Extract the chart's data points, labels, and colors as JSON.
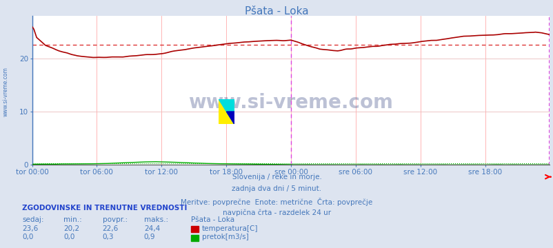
{
  "title": "Pšata - Loka",
  "bg_color": "#dde4f0",
  "plot_bg_color": "#ffffff",
  "grid_color_v": "#ffb0b0",
  "grid_color_h": "#ddcccc",
  "x_labels": [
    "tor 00:00",
    "tor 06:00",
    "tor 12:00",
    "tor 18:00",
    "sre 00:00",
    "sre 06:00",
    "sre 12:00",
    "sre 18:00"
  ],
  "x_ticks_pos": [
    0,
    72,
    144,
    216,
    288,
    360,
    432,
    504
  ],
  "total_points": 577,
  "ylim": [
    0,
    28
  ],
  "yticks": [
    0,
    10,
    20
  ],
  "temp_color": "#aa0000",
  "temp_avg_color": "#dd3333",
  "flow_color": "#00aa00",
  "flow_avg_color": "#00aa00",
  "vertical_line_color": "#dd44dd",
  "vertical_line_x": 288,
  "avg_temp": 22.6,
  "avg_flow": 0.3,
  "text_color": "#4477bb",
  "subtitle_lines": [
    "Slovenija / reke in morje.",
    "zadnja dva dni / 5 minut.",
    "Meritve: povprečne  Enote: metrične  Črta: povprečje",
    "navpična črta - razdelek 24 ur"
  ],
  "info_title": "ZGODOVINSKE IN TRENUTNE VREDNOSTI",
  "col_headers": [
    "sedaj:",
    "min.:",
    "povpr.:",
    "maks.:"
  ],
  "station_name": "Pšata - Loka",
  "temp_row": [
    "23,6",
    "20,2",
    "22,6",
    "24,4",
    "temperatura[C]"
  ],
  "flow_row": [
    "0,0",
    "0,0",
    "0,3",
    "0,9",
    "pretok[m3/s]"
  ],
  "watermark": "www.si-vreme.com"
}
